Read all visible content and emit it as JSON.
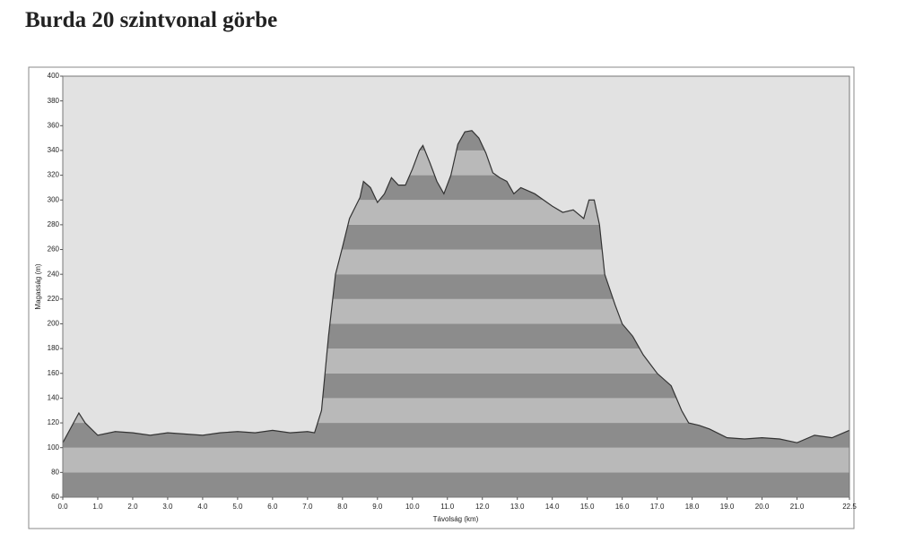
{
  "chart_data": {
    "type": "area",
    "title": "Burda 20 szintvonal görbe",
    "x_label": "Távolság (km)",
    "y_label": "Magasság (m)",
    "x": [
      0,
      0.46,
      0.64,
      1.0,
      1.5,
      2.0,
      2.5,
      3.0,
      3.5,
      4.0,
      4.5,
      5.0,
      5.5,
      6.0,
      6.5,
      7.0,
      7.2,
      7.4,
      7.6,
      7.8,
      8.0,
      8.2,
      8.5,
      8.6,
      8.8,
      9.0,
      9.2,
      9.4,
      9.6,
      9.8,
      10.0,
      10.2,
      10.3,
      10.5,
      10.7,
      10.9,
      11.1,
      11.3,
      11.5,
      11.7,
      11.9,
      12.1,
      12.3,
      12.5,
      12.7,
      12.9,
      13.1,
      13.5,
      14.0,
      14.3,
      14.6,
      14.9,
      15.05,
      15.2,
      15.35,
      15.5,
      15.8,
      16.0,
      16.3,
      16.6,
      17.0,
      17.4,
      17.7,
      17.9,
      18.2,
      18.5,
      19.0,
      19.5,
      20.0,
      20.5,
      21.0,
      21.5,
      22.0,
      22.5
    ],
    "values": [
      104,
      128,
      120,
      110,
      113,
      112,
      110,
      112,
      111,
      110,
      112,
      113,
      112,
      114,
      112,
      113,
      112,
      130,
      190,
      240,
      262,
      285,
      302,
      315,
      310,
      298,
      305,
      318,
      312,
      312,
      325,
      340,
      344,
      330,
      315,
      305,
      320,
      345,
      355,
      356,
      350,
      338,
      322,
      318,
      315,
      305,
      310,
      305,
      295,
      290,
      292,
      285,
      300,
      300,
      280,
      240,
      215,
      200,
      190,
      175,
      160,
      150,
      130,
      120,
      118,
      115,
      108,
      107,
      108,
      107,
      104,
      110,
      108,
      114
    ],
    "line_color": "#333333",
    "band_colors": [
      "#8c8c8c",
      "#b9b9b9"
    ],
    "background_color": "#e2e2e2",
    "xlim": [
      0,
      22.5
    ],
    "xticks": [
      {
        "value": 0,
        "label": "0.0"
      },
      {
        "value": 1,
        "label": "1.0"
      },
      {
        "value": 2,
        "label": "2.0"
      },
      {
        "value": 3,
        "label": "3.0"
      },
      {
        "value": 4,
        "label": "4.0"
      },
      {
        "value": 5,
        "label": "5.0"
      },
      {
        "value": 6,
        "label": "6.0"
      },
      {
        "value": 7,
        "label": "7.0"
      },
      {
        "value": 8,
        "label": "8.0"
      },
      {
        "value": 9,
        "label": "9.0"
      },
      {
        "value": 10,
        "label": "10.0"
      },
      {
        "value": 11,
        "label": "11.0"
      },
      {
        "value": 12,
        "label": "12.0"
      },
      {
        "value": 13,
        "label": "13.0"
      },
      {
        "value": 14,
        "label": "14.0"
      },
      {
        "value": 15,
        "label": "15.0"
      },
      {
        "value": 16,
        "label": "16.0"
      },
      {
        "value": 17,
        "label": "17.0"
      },
      {
        "value": 18,
        "label": "18.0"
      },
      {
        "value": 19,
        "label": "19.0"
      },
      {
        "value": 20,
        "label": "20.0"
      },
      {
        "value": 21,
        "label": "21.0"
      },
      22.5
    ],
    "ylim": [
      60,
      400
    ],
    "yticks": [
      60,
      80,
      100,
      120,
      140,
      160,
      180,
      200,
      220,
      240,
      260,
      280,
      300,
      320,
      340,
      360,
      380,
      400
    ],
    "stripes": true
  }
}
